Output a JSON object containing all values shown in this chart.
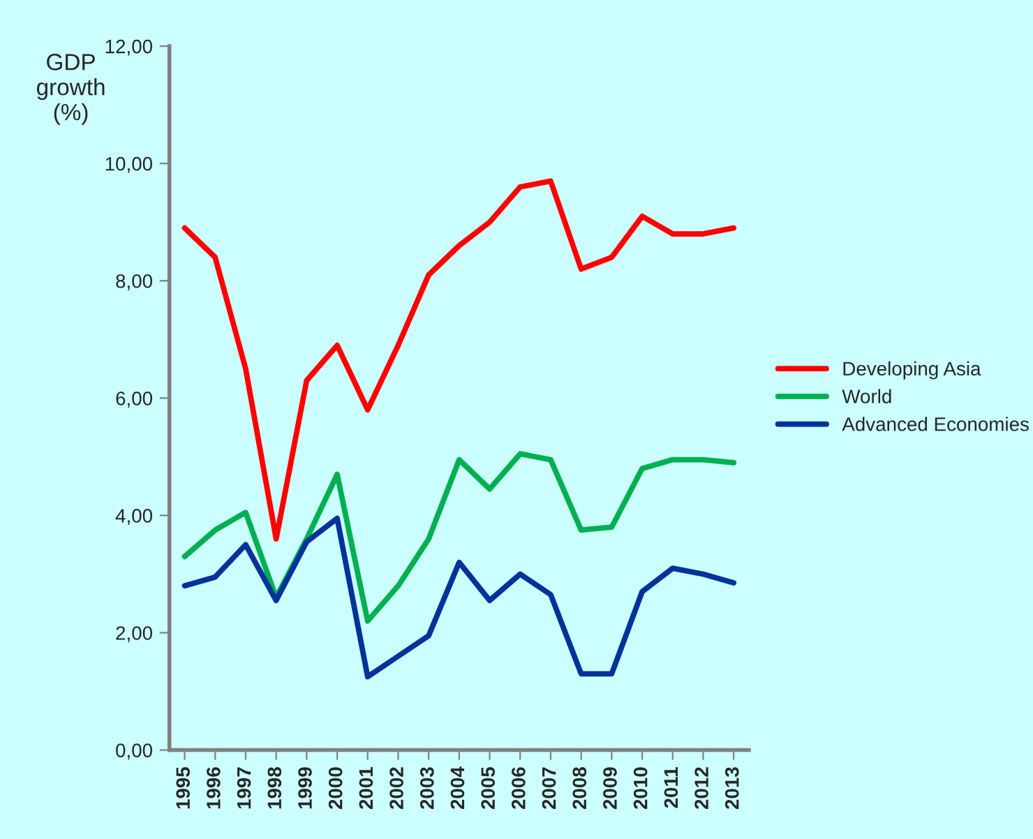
{
  "chart_data": {
    "type": "line",
    "ylabel": "GDP\ngrowth\n(%)",
    "categories": [
      "1995",
      "1996",
      "1997",
      "1998",
      "1999",
      "2000",
      "2001",
      "2002",
      "2003",
      "2004",
      "2005",
      "2006",
      "2007",
      "2008",
      "2009",
      "2010",
      "2011",
      "2012",
      "2013"
    ],
    "series": [
      {
        "name": "Developing Asia",
        "color": "#ff0000",
        "values": [
          8.9,
          8.4,
          6.5,
          3.6,
          6.3,
          6.9,
          5.8,
          6.9,
          8.1,
          8.6,
          9.0,
          9.6,
          9.7,
          8.2,
          8.4,
          9.1,
          8.8,
          8.8,
          8.9
        ]
      },
      {
        "name": "World",
        "color": "#00b050",
        "values": [
          3.3,
          3.75,
          4.05,
          2.6,
          3.6,
          4.7,
          2.2,
          2.8,
          3.6,
          4.95,
          4.45,
          5.05,
          4.95,
          3.75,
          3.8,
          4.8,
          4.95,
          4.95,
          4.9
        ]
      },
      {
        "name": "Advanced Economies",
        "color": "#003399",
        "values": [
          2.8,
          2.95,
          3.5,
          2.55,
          3.55,
          3.95,
          1.25,
          1.6,
          1.95,
          3.2,
          2.55,
          3.0,
          2.65,
          1.3,
          1.3,
          2.7,
          3.1,
          3.0,
          2.85
        ]
      }
    ],
    "ylim": [
      0,
      12
    ],
    "yticks": [
      {
        "value": 0,
        "label": "0,00"
      },
      {
        "value": 2,
        "label": "2,00"
      },
      {
        "value": 4,
        "label": "4,00"
      },
      {
        "value": 6,
        "label": "6,00"
      },
      {
        "value": 8,
        "label": "8,00"
      },
      {
        "value": 10,
        "label": "10,00"
      },
      {
        "value": 12,
        "label": "12,00"
      }
    ],
    "grid": false,
    "legend": "right",
    "marker": "none",
    "line_style": "solid"
  }
}
